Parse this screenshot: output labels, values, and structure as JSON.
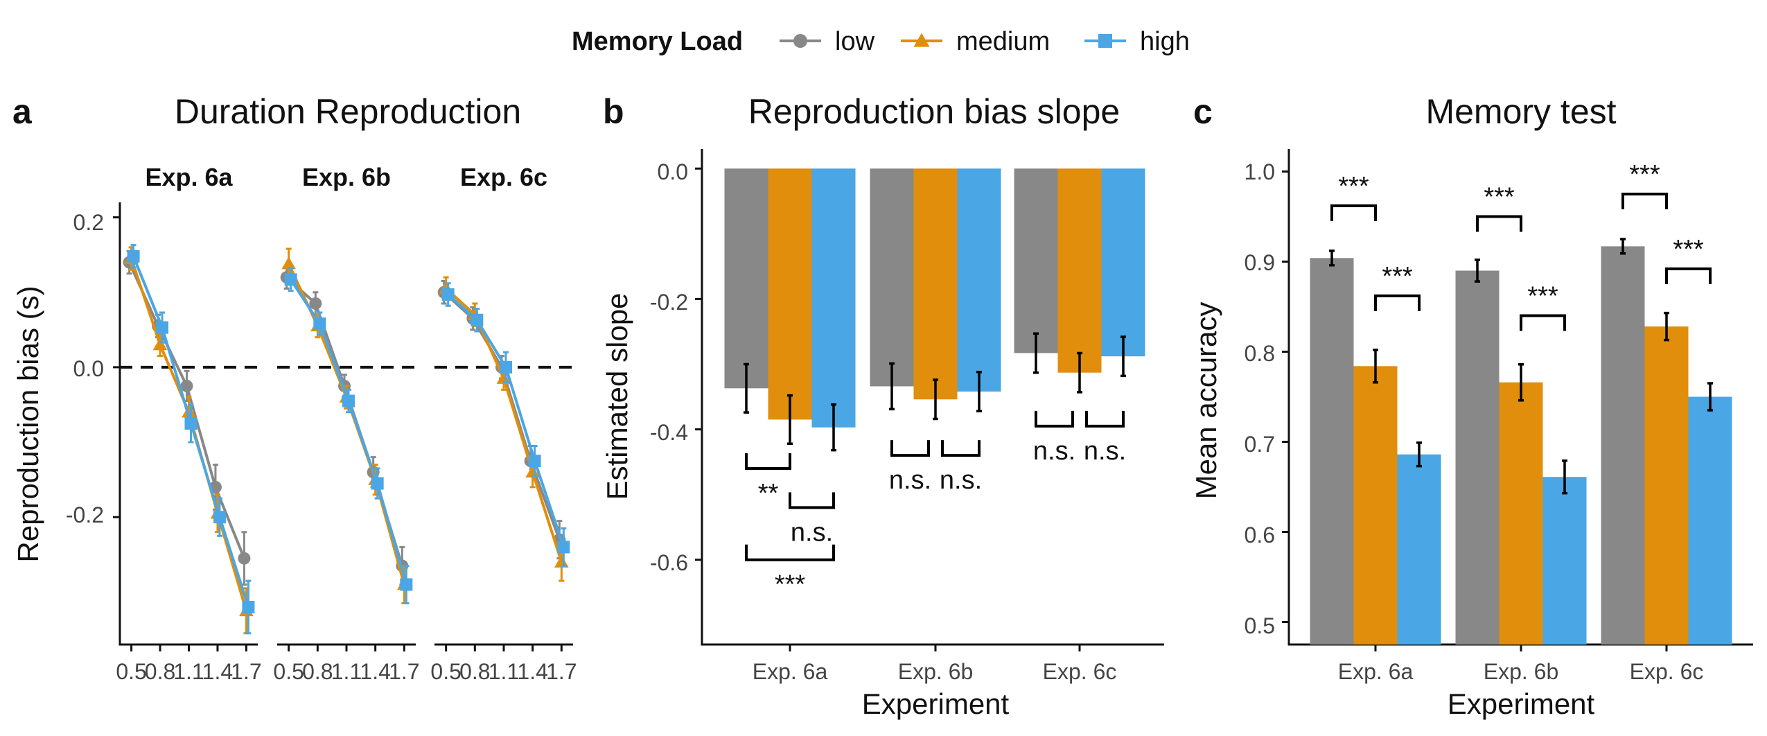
{
  "legend": {
    "title": "Memory Load",
    "items": [
      {
        "label": "low",
        "color": "#888888",
        "shape": "circle"
      },
      {
        "label": "medium",
        "color": "#E08E0B",
        "shape": "triangle"
      },
      {
        "label": "high",
        "color": "#4AA6E4",
        "shape": "square"
      }
    ]
  },
  "panels": {
    "a": {
      "letter": "a",
      "title": "Duration Reproduction",
      "ylabel": "Reproduction bias (s)",
      "yticks": [
        "0.2",
        "0.0",
        "-0.2"
      ]
    },
    "b": {
      "letter": "b",
      "title": "Reproduction bias slope",
      "ylabel": "Estimated slope",
      "xlabel": "Experiment",
      "yticks": [
        "0.0",
        "-0.2",
        "-0.4",
        "-0.6"
      ]
    },
    "c": {
      "letter": "c",
      "title": "Memory test",
      "ylabel": "Mean accuracy",
      "xlabel": "Experiment",
      "yticks": [
        "1.0",
        "0.9",
        "0.8",
        "0.7",
        "0.6",
        "0.5"
      ]
    }
  },
  "chart_data": [
    {
      "id": "a",
      "type": "line",
      "title": "Duration Reproduction",
      "ylabel": "Reproduction bias (s)",
      "ylim": [
        -0.37,
        0.22
      ],
      "x": [
        0.5,
        0.8,
        1.1,
        1.4,
        1.7
      ],
      "x_tick_labels": [
        "0.5",
        "0.8",
        "1.1",
        "1.4",
        "1.7"
      ],
      "reference_line": {
        "y": 0.0,
        "style": "dashed"
      },
      "facets": [
        {
          "label": "Exp. 6a",
          "series": [
            {
              "name": "low",
              "values": [
                0.14,
                0.055,
                -0.025,
                -0.16,
                -0.255
              ],
              "errors": [
                0.015,
                0.015,
                0.02,
                0.03,
                0.035
              ]
            },
            {
              "name": "medium",
              "values": [
                0.145,
                0.03,
                -0.06,
                -0.195,
                -0.325
              ],
              "errors": [
                0.015,
                0.015,
                0.02,
                0.025,
                0.03
              ]
            },
            {
              "name": "high",
              "values": [
                0.148,
                0.053,
                -0.075,
                -0.2,
                -0.32
              ],
              "errors": [
                0.015,
                0.02,
                0.025,
                0.025,
                0.035
              ]
            }
          ]
        },
        {
          "label": "Exp. 6b",
          "series": [
            {
              "name": "low",
              "values": [
                0.12,
                0.085,
                -0.025,
                -0.14,
                -0.265
              ],
              "errors": [
                0.015,
                0.015,
                0.015,
                0.02,
                0.025
              ]
            },
            {
              "name": "medium",
              "values": [
                0.138,
                0.055,
                -0.04,
                -0.15,
                -0.29
              ],
              "errors": [
                0.02,
                0.015,
                0.015,
                0.02,
                0.025
              ]
            },
            {
              "name": "high",
              "values": [
                0.117,
                0.058,
                -0.045,
                -0.155,
                -0.29
              ],
              "errors": [
                0.015,
                0.015,
                0.015,
                0.02,
                0.025
              ]
            }
          ]
        },
        {
          "label": "Exp. 6c",
          "series": [
            {
              "name": "low",
              "values": [
                0.1,
                0.065,
                0.0,
                -0.125,
                -0.23
              ],
              "errors": [
                0.015,
                0.015,
                0.015,
                0.02,
                0.025
              ]
            },
            {
              "name": "medium",
              "values": [
                0.105,
                0.07,
                -0.015,
                -0.14,
                -0.26
              ],
              "errors": [
                0.015,
                0.015,
                0.015,
                0.02,
                0.025
              ]
            },
            {
              "name": "high",
              "values": [
                0.097,
                0.063,
                0.0,
                -0.125,
                -0.24
              ],
              "errors": [
                0.015,
                0.015,
                0.02,
                0.02,
                0.025
              ]
            }
          ]
        }
      ]
    },
    {
      "id": "b",
      "type": "bar",
      "title": "Reproduction bias slope",
      "xlabel": "Experiment",
      "ylabel": "Estimated slope",
      "ylim": [
        -0.73,
        0.03
      ],
      "categories": [
        "Exp. 6a",
        "Exp. 6b",
        "Exp. 6c"
      ],
      "series": [
        {
          "name": "low",
          "values": [
            -0.337,
            -0.334,
            -0.283
          ],
          "errors": [
            0.037,
            0.035,
            0.03
          ]
        },
        {
          "name": "medium",
          "values": [
            -0.385,
            -0.354,
            -0.313
          ],
          "errors": [
            0.037,
            0.03,
            0.03
          ]
        },
        {
          "name": "high",
          "values": [
            -0.397,
            -0.342,
            -0.288
          ],
          "errors": [
            0.035,
            0.03,
            0.03
          ]
        }
      ],
      "annotations": [
        {
          "group": 0,
          "from": 0,
          "to": 1,
          "label": "**",
          "y": -0.46,
          "label_below": true
        },
        {
          "group": 0,
          "from": 1,
          "to": 2,
          "label": "n.s.",
          "y": -0.52,
          "label_below": true
        },
        {
          "group": 0,
          "from": 0,
          "to": 2,
          "label": "***",
          "y": -0.6,
          "label_below": true
        },
        {
          "group": 1,
          "from": 0,
          "to": 1,
          "label": "n.s.",
          "y": -0.44,
          "label_below": true,
          "pair_join": true
        },
        {
          "group": 1,
          "from": 1,
          "to": 2,
          "label": "n.s.",
          "y": -0.44,
          "label_below": true,
          "pair_join": true
        },
        {
          "group": 2,
          "from": 0,
          "to": 1,
          "label": "n.s.",
          "y": -0.395,
          "label_below": true,
          "pair_join": true
        },
        {
          "group": 2,
          "from": 1,
          "to": 2,
          "label": "n.s.",
          "y": -0.395,
          "label_below": true,
          "pair_join": true
        }
      ]
    },
    {
      "id": "c",
      "type": "bar",
      "title": "Memory test",
      "xlabel": "Experiment",
      "ylabel": "Mean accuracy",
      "ylim": [
        0.475,
        1.025
      ],
      "categories": [
        "Exp. 6a",
        "Exp. 6b",
        "Exp. 6c"
      ],
      "series": [
        {
          "name": "low",
          "values": [
            0.904,
            0.89,
            0.917
          ],
          "errors": [
            0.008,
            0.012,
            0.008
          ]
        },
        {
          "name": "medium",
          "values": [
            0.784,
            0.766,
            0.828
          ],
          "errors": [
            0.018,
            0.02,
            0.015
          ]
        },
        {
          "name": "high",
          "values": [
            0.686,
            0.661,
            0.75
          ],
          "errors": [
            0.013,
            0.018,
            0.015
          ]
        }
      ],
      "annotations": [
        {
          "group": 0,
          "from": 0,
          "to": 1,
          "label": "***",
          "y": 0.962
        },
        {
          "group": 0,
          "from": 1,
          "to": 2,
          "label": "***",
          "y": 0.862
        },
        {
          "group": 1,
          "from": 0,
          "to": 1,
          "label": "***",
          "y": 0.95
        },
        {
          "group": 1,
          "from": 1,
          "to": 2,
          "label": "***",
          "y": 0.84
        },
        {
          "group": 2,
          "from": 0,
          "to": 1,
          "label": "***",
          "y": 0.975
        },
        {
          "group": 2,
          "from": 1,
          "to": 2,
          "label": "***",
          "y": 0.892
        }
      ]
    }
  ]
}
